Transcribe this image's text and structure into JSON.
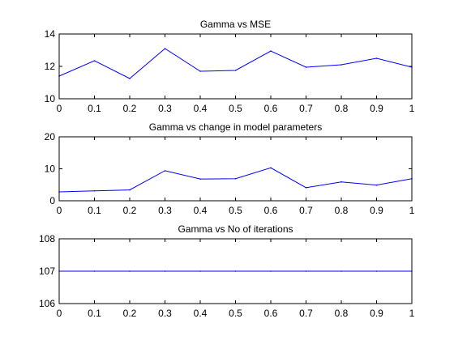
{
  "chart_data": [
    {
      "type": "line",
      "title": "Gamma vs MSE",
      "xlabel": "",
      "ylabel": "",
      "xlim": [
        0,
        1
      ],
      "ylim": [
        10,
        14
      ],
      "xticks": [
        0,
        0.1,
        0.2,
        0.3,
        0.4,
        0.5,
        0.6,
        0.7,
        0.8,
        0.9,
        1
      ],
      "xtick_labels": [
        "0",
        "0.1",
        "0.2",
        "0.3",
        "0.4",
        "0.5",
        "0.6",
        "0.7",
        "0.8",
        "0.9",
        "1"
      ],
      "yticks": [
        10,
        12,
        14
      ],
      "ytick_labels": [
        "10",
        "12",
        "14"
      ],
      "grid": false,
      "line_color": "#0000ff",
      "x": [
        0,
        0.1,
        0.2,
        0.3,
        0.4,
        0.5,
        0.6,
        0.7,
        0.8,
        0.9,
        1
      ],
      "series": [
        {
          "values": [
            11.4,
            12.35,
            11.25,
            13.1,
            11.7,
            11.75,
            12.95,
            11.95,
            12.1,
            12.5,
            11.95
          ]
        }
      ]
    },
    {
      "type": "line",
      "title": "Gamma vs change in model parameters",
      "xlabel": "",
      "ylabel": "",
      "xlim": [
        0,
        1
      ],
      "ylim": [
        0,
        20
      ],
      "xticks": [
        0,
        0.1,
        0.2,
        0.3,
        0.4,
        0.5,
        0.6,
        0.7,
        0.8,
        0.9,
        1
      ],
      "xtick_labels": [
        "0",
        "0.1",
        "0.2",
        "0.3",
        "0.4",
        "0.5",
        "0.6",
        "0.7",
        "0.8",
        "0.9",
        "1"
      ],
      "yticks": [
        0,
        10,
        20
      ],
      "ytick_labels": [
        "0",
        "10",
        "20"
      ],
      "grid": false,
      "line_color": "#0000ff",
      "x": [
        0,
        0.1,
        0.2,
        0.3,
        0.4,
        0.5,
        0.6,
        0.7,
        0.8,
        0.9,
        1
      ],
      "series": [
        {
          "values": [
            2.8,
            3.1,
            3.4,
            9.4,
            6.8,
            6.9,
            10.3,
            4.1,
            5.9,
            4.9,
            6.9
          ]
        }
      ]
    },
    {
      "type": "line",
      "title": "Gamma vs No of iterations",
      "xlabel": "",
      "ylabel": "",
      "xlim": [
        0,
        1
      ],
      "ylim": [
        106,
        108
      ],
      "xticks": [
        0,
        0.1,
        0.2,
        0.3,
        0.4,
        0.5,
        0.6,
        0.7,
        0.8,
        0.9,
        1
      ],
      "xtick_labels": [
        "0",
        "0.1",
        "0.2",
        "0.3",
        "0.4",
        "0.5",
        "0.6",
        "0.7",
        "0.8",
        "0.9",
        "1"
      ],
      "yticks": [
        106,
        107,
        108
      ],
      "ytick_labels": [
        "106",
        "107",
        "108"
      ],
      "grid": false,
      "line_color": "#0000ff",
      "x": [
        0,
        0.1,
        0.2,
        0.3,
        0.4,
        0.5,
        0.6,
        0.7,
        0.8,
        0.9,
        1
      ],
      "series": [
        {
          "values": [
            107,
            107,
            107,
            107,
            107,
            107,
            107,
            107,
            107,
            107,
            107
          ]
        }
      ]
    }
  ]
}
